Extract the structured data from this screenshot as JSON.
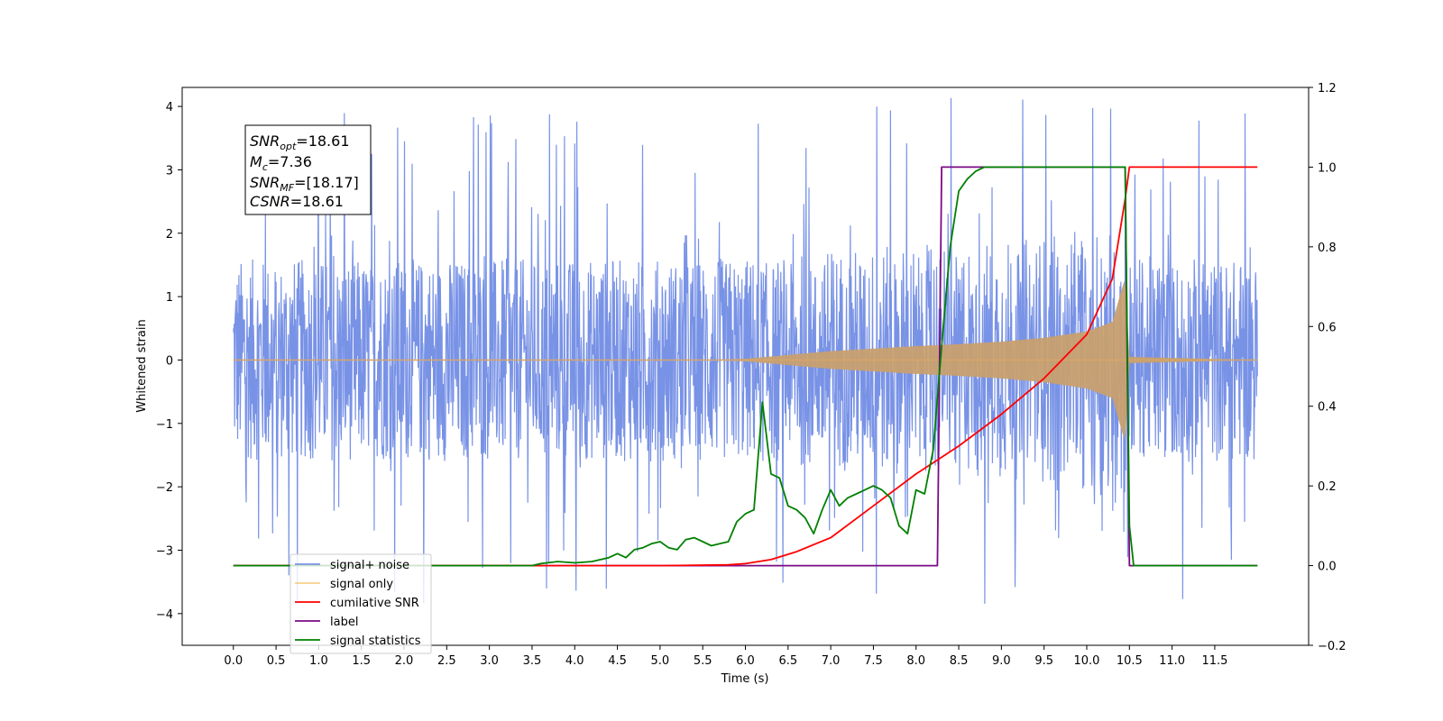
{
  "chart_data": {
    "type": "line",
    "title": "",
    "xlabel": "Time (s)",
    "ylabel": "Whitened strain",
    "xlim": [
      -0.6,
      12.6
    ],
    "ylim": [
      -4.5,
      4.3
    ],
    "y2lim": [
      -0.2,
      1.2
    ],
    "x_ticks": [
      "0.0",
      "0.5",
      "1.0",
      "1.5",
      "2.0",
      "2.5",
      "3.0",
      "3.5",
      "4.0",
      "4.5",
      "5.0",
      "5.5",
      "6.0",
      "6.5",
      "7.0",
      "7.5",
      "8.0",
      "8.5",
      "9.0",
      "9.5",
      "10.0",
      "10.5",
      "11.0",
      "11.5"
    ],
    "y_ticks": [
      "4",
      "3",
      "2",
      "1",
      "0",
      "−1",
      "−2",
      "−3",
      "−4"
    ],
    "y2_ticks": [
      "1.2",
      "1.0",
      "0.8",
      "0.6",
      "0.4",
      "0.2",
      "0.0",
      "−0.2"
    ],
    "grid": false,
    "legend_position": "lower-left",
    "stats_box": {
      "snr_opt": "=18.61",
      "mc": "=7.36",
      "snr_mf": "=[18.17]",
      "csnr": "=18.61",
      "snr_opt_base": "SNR",
      "snr_opt_sub": "opt",
      "mc_base": "M",
      "mc_sub": "c",
      "snr_mf_base": "SNR",
      "snr_mf_sub": "MF",
      "csnr_base": "CSNR"
    },
    "series": [
      {
        "name": "signal+ noise",
        "color": "#7892e6",
        "axis": "left",
        "description_values": {
          "x_range": [
            0,
            12
          ],
          "amplitude_typical": 1.6,
          "amplitude_peak": 3.9
        }
      },
      {
        "name": "signal only",
        "color": "#f5bd5e",
        "axis": "left",
        "envelope": {
          "x": [
            0,
            5.5,
            6.0,
            6.5,
            7.0,
            7.5,
            8.0,
            8.5,
            9.0,
            9.5,
            10.0,
            10.3,
            10.45,
            10.5,
            12.0
          ],
          "amp": [
            0,
            0.0,
            0.02,
            0.08,
            0.14,
            0.18,
            0.22,
            0.25,
            0.29,
            0.35,
            0.45,
            0.6,
            1.3,
            0.05,
            0.0
          ]
        }
      },
      {
        "name": "cumilative SNR",
        "color": "#ff0000",
        "axis": "right",
        "x": [
          0,
          3.5,
          5.0,
          5.8,
          6.0,
          6.3,
          6.6,
          7.0,
          7.5,
          8.0,
          8.5,
          9.0,
          9.5,
          10.0,
          10.3,
          10.45,
          10.5,
          12.0
        ],
        "y": [
          0.0,
          0.0,
          0.0,
          0.002,
          0.005,
          0.015,
          0.035,
          0.07,
          0.15,
          0.23,
          0.3,
          0.38,
          0.47,
          0.58,
          0.72,
          0.92,
          1.0,
          1.0
        ]
      },
      {
        "name": "label",
        "color": "#7b0a85",
        "axis": "right",
        "x": [
          0,
          8.25,
          8.3,
          10.45,
          10.5,
          12.0
        ],
        "y": [
          0,
          0,
          1,
          1,
          0,
          0
        ]
      },
      {
        "name": "signal statistics",
        "color": "#008000",
        "axis": "right",
        "x": [
          0,
          3.5,
          3.6,
          3.8,
          4.0,
          4.2,
          4.4,
          4.5,
          4.6,
          4.7,
          4.8,
          4.9,
          5.0,
          5.1,
          5.2,
          5.3,
          5.4,
          5.5,
          5.6,
          5.7,
          5.8,
          5.9,
          6.0,
          6.1,
          6.2,
          6.3,
          6.4,
          6.5,
          6.6,
          6.7,
          6.8,
          6.9,
          7.0,
          7.1,
          7.2,
          7.3,
          7.4,
          7.5,
          7.6,
          7.7,
          7.8,
          7.9,
          8.0,
          8.1,
          8.2,
          8.3,
          8.4,
          8.5,
          8.6,
          8.7,
          8.8,
          9.0,
          10.0,
          10.45,
          10.5,
          10.55,
          12.0
        ],
        "y": [
          0.0,
          0.0,
          0.005,
          0.01,
          0.007,
          0.01,
          0.02,
          0.03,
          0.02,
          0.04,
          0.045,
          0.055,
          0.06,
          0.045,
          0.04,
          0.065,
          0.07,
          0.06,
          0.05,
          0.055,
          0.06,
          0.11,
          0.13,
          0.14,
          0.41,
          0.23,
          0.22,
          0.15,
          0.14,
          0.12,
          0.08,
          0.14,
          0.19,
          0.15,
          0.17,
          0.18,
          0.19,
          0.2,
          0.19,
          0.17,
          0.1,
          0.08,
          0.19,
          0.18,
          0.29,
          0.55,
          0.8,
          0.94,
          0.97,
          0.99,
          1.0,
          1.0,
          1.0,
          1.0,
          0.1,
          0.0,
          0.0
        ]
      }
    ]
  }
}
